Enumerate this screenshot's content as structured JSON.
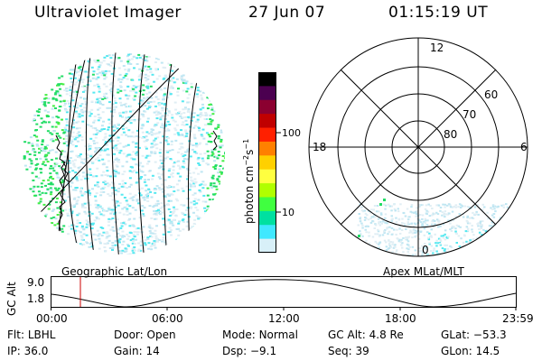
{
  "header": {
    "instrument": "Ultraviolet Imager",
    "date": "27 Jun 07",
    "time": "01:15:19 UT"
  },
  "colorbar": {
    "unit_label": "photon cm",
    "unit_exp1": "−2",
    "unit_mid": "s",
    "unit_exp2": "−1",
    "ticks": [
      "100",
      "10"
    ],
    "scale": "log",
    "colors": [
      "#000000",
      "#4b0050",
      "#8b0030",
      "#c00000",
      "#ff2000",
      "#ff8000",
      "#ffd000",
      "#ffff40",
      "#b0ff00",
      "#40ff40",
      "#00e0a0",
      "#40e8ff",
      "#d8f0f8"
    ]
  },
  "left_panel": {
    "caption": "Geographic Lat/Lon",
    "speckle_colors": [
      "#22dd66",
      "#44ee44",
      "#55e8f0",
      "#bfe6f2",
      "#e0eef4"
    ]
  },
  "polar_panel": {
    "caption": "Apex  MLat/MLT",
    "mlt_labels": {
      "top": "12",
      "left": "18",
      "right": "6",
      "bottom": "0"
    },
    "lat_labels": [
      "60",
      "70",
      "80"
    ]
  },
  "altitude_plot": {
    "ylabel": "GC Alt",
    "yticks": [
      "9.0",
      "1.8"
    ],
    "xticks": [
      "00:00",
      "06:00",
      "12:00",
      "18:00",
      "23:59"
    ],
    "marker_color": "#cc0000"
  },
  "info": {
    "flt_label": "Flt:",
    "flt_value": "LBHL",
    "door_label": "Door:",
    "door_value": "Open",
    "mode_label": "Mode:",
    "mode_value": "Normal",
    "gcalt_label": "GC Alt:",
    "gcalt_value": "4.8 Re",
    "glat_label": "GLat:",
    "glat_value": "−53.3",
    "ip_label": "IP:",
    "ip_value": "36.0",
    "gain_label": "Gain:",
    "gain_value": "14",
    "dsp_label": "Dsp:",
    "dsp_value": "−9.1",
    "seq_label": "Seq:",
    "seq_value": "39",
    "glon_label": "GLon:",
    "glon_value": "14.5"
  }
}
